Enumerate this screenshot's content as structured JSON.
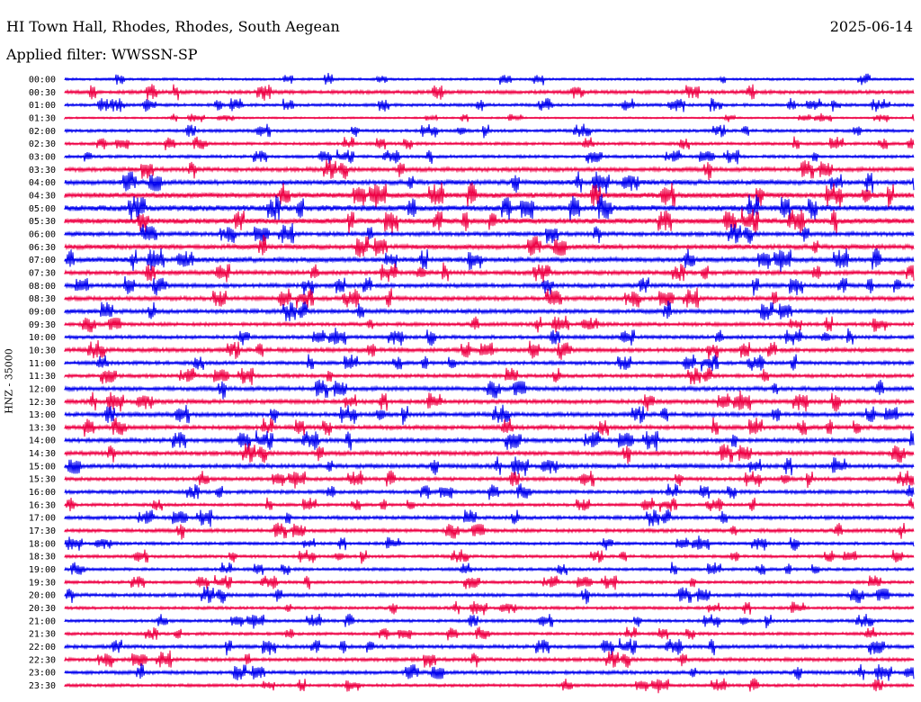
{
  "header": {
    "title": "HI Town Hall, Rhodes, Rhodes, South Aegean",
    "date": "2025-06-14",
    "filter": "Applied filter: WWSSN-SP"
  },
  "chart_data": {
    "type": "line",
    "title": "HI Town Hall, Rhodes, Rhodes, South Aegean",
    "ylabel": "HNZ - 35000",
    "colors": [
      "#0000ee",
      "#ee0044"
    ],
    "rows": [
      "00:00",
      "00:30",
      "01:00",
      "01:30",
      "02:00",
      "02:30",
      "03:00",
      "03:30",
      "04:00",
      "04:30",
      "05:00",
      "05:30",
      "06:00",
      "06:30",
      "07:00",
      "07:30",
      "08:00",
      "08:30",
      "09:00",
      "09:30",
      "10:00",
      "10:30",
      "11:00",
      "11:30",
      "12:00",
      "12:30",
      "13:00",
      "13:30",
      "14:00",
      "14:30",
      "15:00",
      "15:30",
      "16:00",
      "16:30",
      "17:00",
      "17:30",
      "18:00",
      "18:30",
      "19:00",
      "19:30",
      "20:00",
      "20:30",
      "21:00",
      "21:30",
      "22:00",
      "22:30",
      "23:00",
      "23:30"
    ],
    "noise_level": [
      0.8,
      1.2,
      1.0,
      0.6,
      1.0,
      1.0,
      1.0,
      1.4,
      1.6,
      1.8,
      2.0,
      1.8,
      1.4,
      1.6,
      1.6,
      1.4,
      1.4,
      1.4,
      1.4,
      1.2,
      1.2,
      1.4,
      1.2,
      1.2,
      1.4,
      1.4,
      1.4,
      1.4,
      1.4,
      1.4,
      1.4,
      1.2,
      1.2,
      1.0,
      1.2,
      1.2,
      1.0,
      1.0,
      1.0,
      1.0,
      1.2,
      1.0,
      1.0,
      1.0,
      1.2,
      1.2,
      1.2,
      1.0
    ]
  }
}
